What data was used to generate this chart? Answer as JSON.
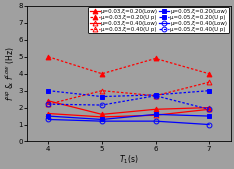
{
  "x": [
    4,
    5,
    6,
    7
  ],
  "background_color": "#a0a0a0",
  "series": [
    {
      "label": "μ=0.03,ξ=0.20(Low)",
      "color": "red",
      "linestyle": "solid",
      "marker": "^",
      "markerfacecolor": "red",
      "markersize": 3.5,
      "linewidth": 0.9,
      "y": [
        2.4,
        1.6,
        1.9,
        2.0
      ]
    },
    {
      "label": "μ=0.03,ξ=0.40(Low)",
      "color": "red",
      "linestyle": "solid",
      "marker": "^",
      "markerfacecolor": "none",
      "markersize": 3.5,
      "linewidth": 0.9,
      "y": [
        1.65,
        1.45,
        1.55,
        1.9
      ]
    },
    {
      "label": "μ=0.05,ξ=0.20(Low)",
      "color": "blue",
      "linestyle": "solid",
      "marker": "s",
      "markerfacecolor": "blue",
      "markersize": 3.5,
      "linewidth": 0.9,
      "y": [
        1.5,
        1.3,
        1.6,
        1.5
      ]
    },
    {
      "label": "μ=0.05,ξ=0.40(Low)",
      "color": "blue",
      "linestyle": "solid",
      "marker": "o",
      "markerfacecolor": "none",
      "markersize": 3.5,
      "linewidth": 0.9,
      "y": [
        1.3,
        1.2,
        1.2,
        1.0
      ]
    },
    {
      "label": "μ=0.03,ξ=0.20(U p)",
      "color": "red",
      "linestyle": "dotted",
      "marker": "^",
      "markerfacecolor": "red",
      "markersize": 3.5,
      "linewidth": 0.9,
      "y": [
        5.0,
        4.0,
        4.9,
        4.0
      ]
    },
    {
      "label": "μ=0.03,ξ=0.40(U p)",
      "color": "red",
      "linestyle": "dotted",
      "marker": "^",
      "markerfacecolor": "none",
      "markersize": 3.5,
      "linewidth": 0.9,
      "y": [
        2.2,
        3.0,
        2.7,
        3.5
      ]
    },
    {
      "label": "μ=0.05,ξ=0.20(U p)",
      "color": "blue",
      "linestyle": "dotted",
      "marker": "s",
      "markerfacecolor": "blue",
      "markersize": 3.5,
      "linewidth": 0.9,
      "y": [
        3.0,
        2.65,
        2.75,
        3.0
      ]
    },
    {
      "label": "μ=0.05,ξ=0.40(U p)",
      "color": "blue",
      "linestyle": "dotted",
      "marker": "o",
      "markerfacecolor": "none",
      "markersize": 3.5,
      "linewidth": 0.9,
      "y": [
        2.2,
        2.15,
        2.7,
        1.9
      ]
    }
  ],
  "xlim": [
    3.6,
    7.4
  ],
  "ylim": [
    0,
    8
  ],
  "xticks": [
    4,
    5,
    6,
    7
  ],
  "yticks": [
    0,
    1,
    2,
    3,
    4,
    5,
    6,
    7,
    8
  ],
  "xlabel": "$T_1$(s)",
  "ylabel": "$f^{up}$ & $f^{Low}$ (Hz)",
  "legend_fontsize": 4.0,
  "tick_fontsize": 5.0,
  "label_fontsize": 5.5
}
